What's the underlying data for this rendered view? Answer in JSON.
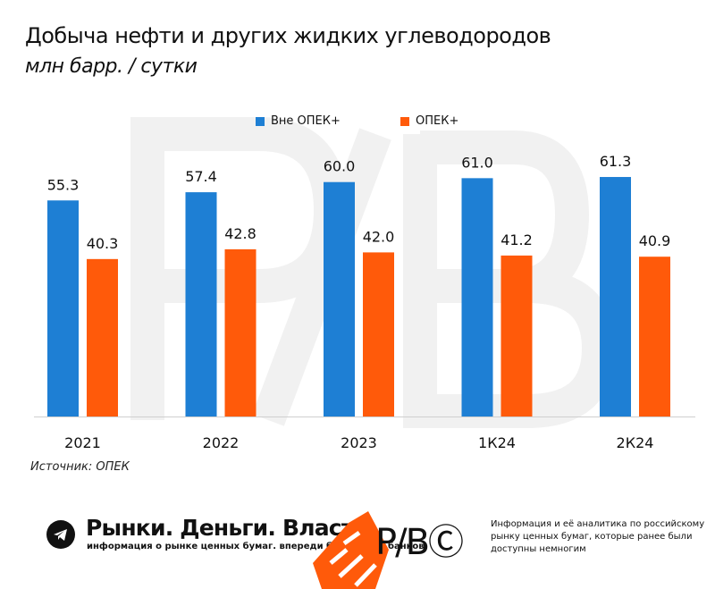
{
  "title": "Добыча нефти и других жидких углеводородов",
  "subtitle": "млн барр. / сутки",
  "source": "Источник: ОПЕК",
  "chart_data": {
    "type": "bar",
    "categories": [
      "2021",
      "2022",
      "2023",
      "1К24",
      "2К24"
    ],
    "series": [
      {
        "name": "Вне ОПЕК+",
        "values": [
          55.3,
          57.4,
          60.0,
          61.0,
          61.3
        ],
        "color": "#1E7FD4"
      },
      {
        "name": "ОПЕК+",
        "values": [
          40.3,
          42.8,
          42.0,
          41.2,
          40.9
        ],
        "color": "#FF5A0A"
      }
    ],
    "value_labels": [
      [
        "55.3",
        "57.4",
        "60.0",
        "61.0",
        "61.3"
      ],
      [
        "40.3",
        "42.8",
        "42.0",
        "41.2",
        "40.9"
      ]
    ],
    "ylim": [
      0,
      70
    ],
    "grid": false,
    "legend": "top-center"
  },
  "footer": {
    "brand": "Рынки. Деньги. Власть.",
    "tagline": "информация о рынке ценных бумаг. впереди брокеров и банков.",
    "note": "Информация и её аналитика по российскому рынку ценных бумаг, которые ранее были доступны немногим",
    "logo_text": "Р/ВⒸ",
    "icon": "telegram-icon"
  }
}
